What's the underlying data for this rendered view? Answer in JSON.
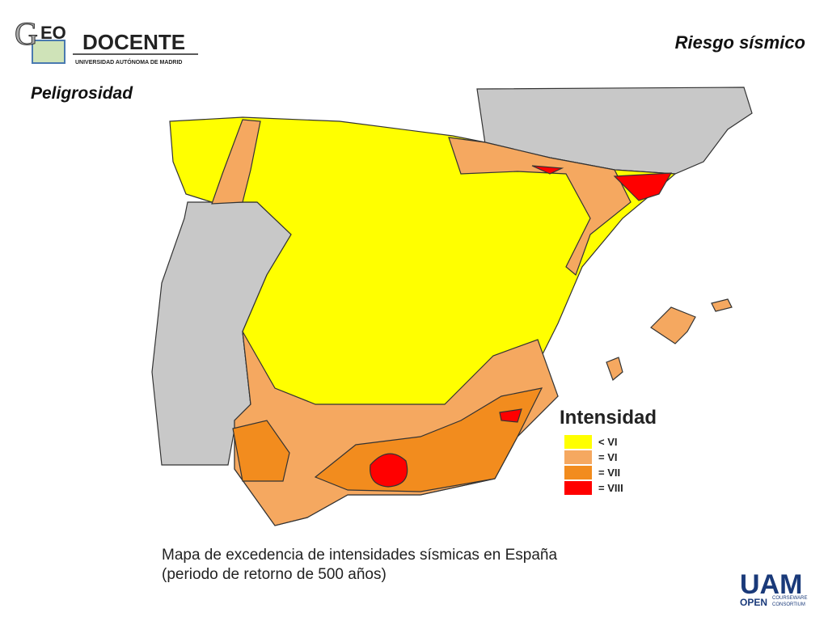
{
  "header": {
    "logo_letter": "G",
    "logo_eo": "EO",
    "logo_name": "DOCENTE",
    "logo_subtitle": "Universidad Autónoma de Madrid",
    "title": "Riesgo sísmico",
    "subtitle": "Peligrosidad"
  },
  "legend": {
    "title": "Intensidad",
    "items": [
      {
        "label": "< VI",
        "color": "#ffff00"
      },
      {
        "label": "= VI",
        "color": "#f5a860"
      },
      {
        "label": "= VII",
        "color": "#f28c1e"
      },
      {
        "label": "= VIII",
        "color": "#ff0000"
      }
    ]
  },
  "caption": {
    "line1": "Mapa de excedencia de intensidades sísmicas en España",
    "line2": "(periodo de retorno de 500 años)"
  },
  "footer_logo": {
    "name": "UAM",
    "open": "OPEN",
    "courseware": "COURSEWARE",
    "consortium": "CONSORTIUM"
  }
}
